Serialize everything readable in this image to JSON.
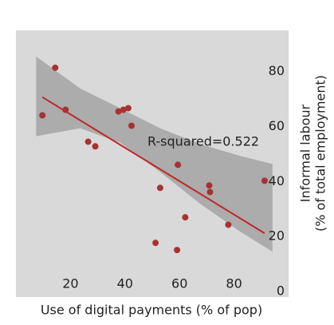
{
  "chart_data": {
    "type": "scatter",
    "x_label": "Use of digital payments (% of pop)",
    "y_label": [
      "Informal labour",
      "(% of total employment)"
    ],
    "annotation": "R-squared=0.522",
    "series": [
      {
        "color": "#a83232",
        "x": [
          9.7,
          14.4,
          18.2,
          26.5,
          29.1,
          37.6,
          39.4,
          41.2,
          42.4,
          59.4,
          52.9,
          51.2,
          59.1,
          62.1,
          70.9,
          71.2,
          77.9,
          91.2
        ],
        "values": [
          64.1,
          81.4,
          66.1,
          54.5,
          52.8,
          65.5,
          66.1,
          66.7,
          60.3,
          46.1,
          37.7,
          17.7,
          15.1,
          27.0,
          38.6,
          36.2,
          24.3,
          40.3
        ]
      }
    ],
    "fit": {
      "color": "#c0282a",
      "x": [
        9.7,
        91.2
      ],
      "values": [
        70.7,
        21.2
      ]
    },
    "band": {
      "color": "#a6a6a6",
      "x": [
        7.4,
        23.5,
        38.2,
        52.9,
        67.6,
        82.4,
        94.1
      ],
      "upper": [
        85.5,
        73.9,
        66.7,
        59.4,
        53.6,
        49.3,
        46.4
      ],
      "lower": [
        56.5,
        59.4,
        54.2,
        43.5,
        31.9,
        21.7,
        14.5
      ]
    },
    "xlim": [
      0,
      100
    ],
    "ylim": [
      -2,
      95
    ],
    "xticks": [
      20,
      40,
      60,
      80
    ],
    "yticks": [
      0,
      20,
      40,
      60,
      80
    ],
    "background": "#d9d9d9"
  }
}
